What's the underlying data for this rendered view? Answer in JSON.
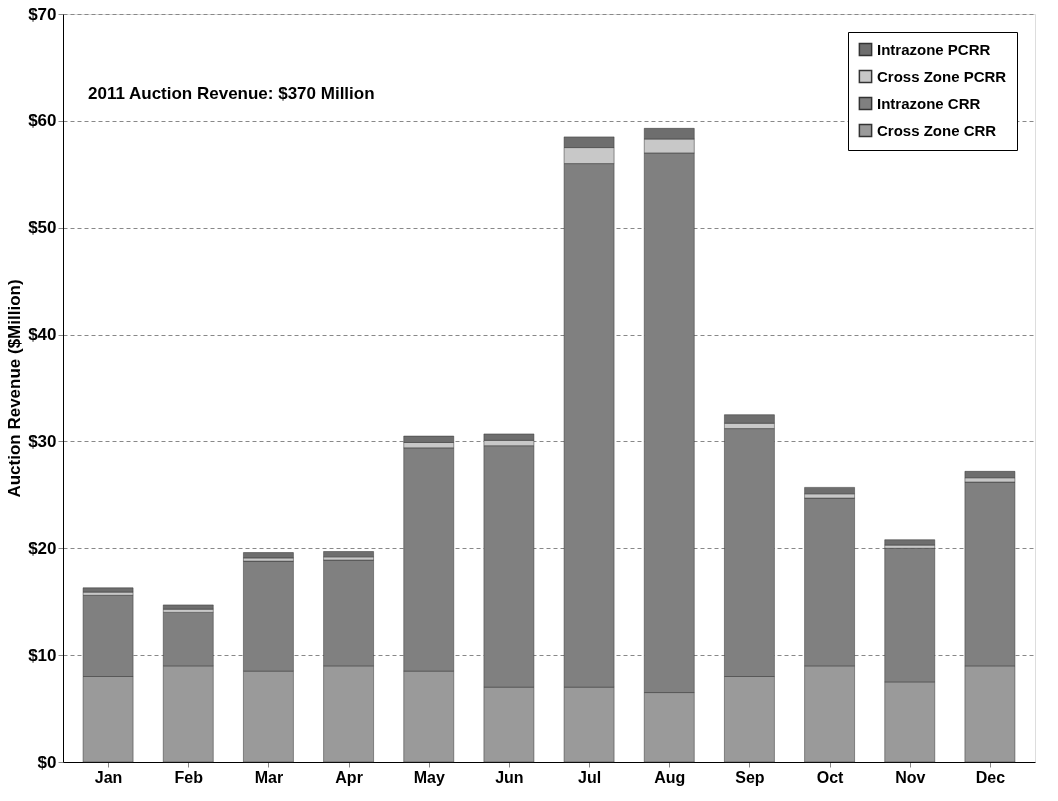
{
  "chart_data": {
    "type": "bar",
    "stacked": true,
    "ylabel": "Auction Revenue ($Million)",
    "annotations": [
      "2011 Auction Revenue: $370 Million"
    ],
    "categories": [
      "Jan",
      "Feb",
      "Mar",
      "Apr",
      "May",
      "Jun",
      "Jul",
      "Aug",
      "Sep",
      "Oct",
      "Nov",
      "Dec"
    ],
    "series": [
      {
        "name": "Cross Zone CRR",
        "color": "#9a9a9a",
        "values": [
          8,
          9,
          8.5,
          9,
          8.5,
          7,
          7,
          6.5,
          8,
          9,
          7.5,
          9
        ]
      },
      {
        "name": "Intrazone CRR",
        "color": "#808080",
        "values": [
          7.6,
          5.0,
          10.3,
          9.9,
          20.9,
          22.6,
          49.0,
          50.5,
          23.2,
          15.7,
          12.5,
          17.2
        ]
      },
      {
        "name": "Cross Zone PCRR",
        "color": "#c8c8c8",
        "values": [
          0.3,
          0.3,
          0.3,
          0.3,
          0.5,
          0.5,
          1.5,
          1.3,
          0.5,
          0.4,
          0.3,
          0.4
        ]
      },
      {
        "name": "Intrazone PCRR",
        "color": "#6e6e6e",
        "values": [
          0.4,
          0.4,
          0.5,
          0.5,
          0.6,
          0.6,
          1.0,
          1.0,
          0.8,
          0.6,
          0.5,
          0.6
        ]
      }
    ],
    "ylim": [
      0,
      70
    ],
    "yticks": [
      {
        "value": 0,
        "label": "$0"
      },
      {
        "value": 10,
        "label": "$10"
      },
      {
        "value": 20,
        "label": "$20"
      },
      {
        "value": 30,
        "label": "$30"
      },
      {
        "value": 40,
        "label": "$40"
      },
      {
        "value": 50,
        "label": "$50"
      },
      {
        "value": 60,
        "label": "$60"
      },
      {
        "value": 70,
        "label": "$70"
      }
    ],
    "grid": "y",
    "legend": "top right"
  }
}
